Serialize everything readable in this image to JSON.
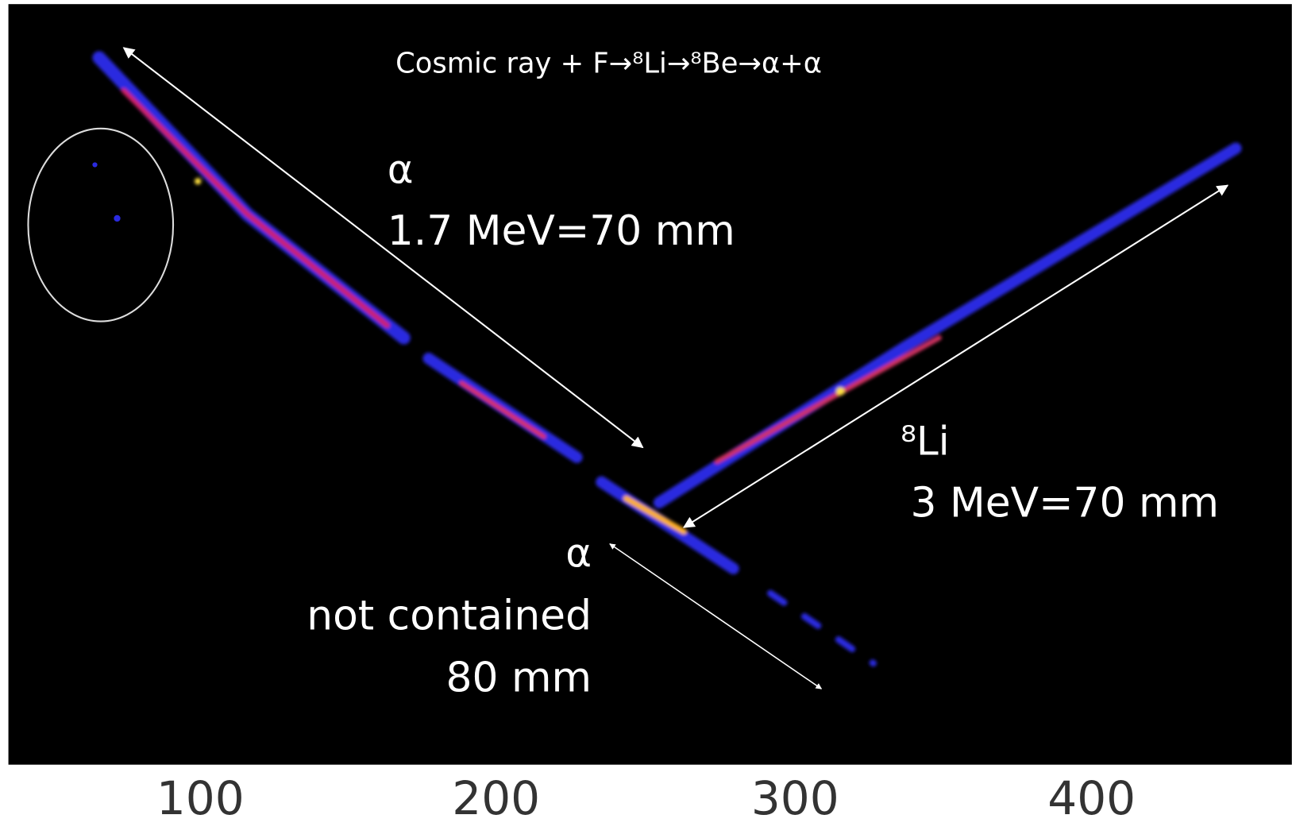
{
  "figure": {
    "title": "Cosmic ray + F→⁸Li→⁸Be→α+α",
    "annotations": {
      "alpha1_symbol": "α",
      "alpha1_energy": "1.7 MeV=70 mm",
      "li_symbol": "⁸Li",
      "li_energy": "3 MeV=70 mm",
      "alpha2_symbol": "α",
      "alpha2_line1": "not contained",
      "alpha2_line2": "80 mm"
    },
    "xticks": [
      "100",
      "200",
      "300",
      "400"
    ]
  }
}
